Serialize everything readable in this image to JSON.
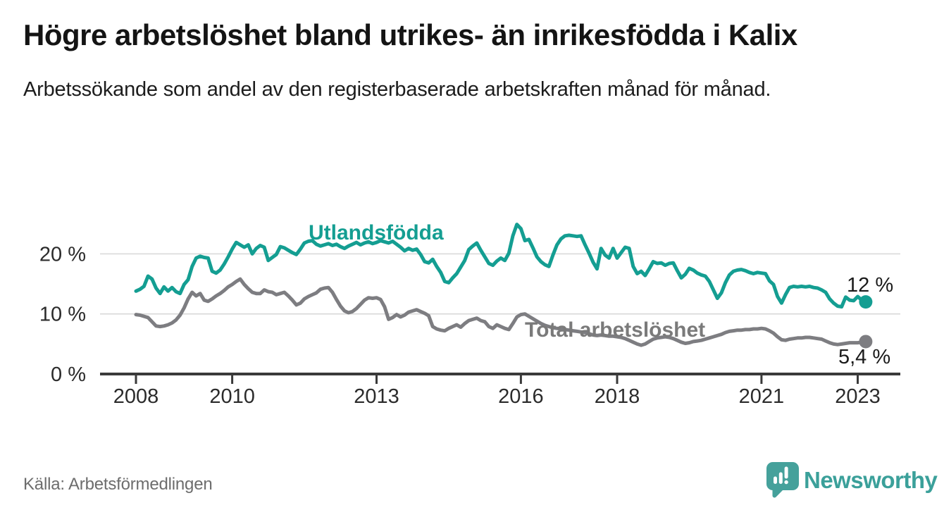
{
  "header": {
    "title": "Högre arbetslöshet bland utrikes- än inrikesfödda i Kalix",
    "subtitle": "Arbetssökande som andel av den registerbaserade arbetskraften månad för månad."
  },
  "footer": {
    "source": "Källa: Arbetsförmedlingen",
    "brand_name": "Newsworthy",
    "brand_icon": "bar-chart-speech-bubble-icon"
  },
  "colors": {
    "foreign_born_line": "#149e92",
    "total_line": "#7d7d81",
    "axis": "#3a3a3a",
    "grid": "#d9d9d9",
    "tick_text": "#2b2b2b",
    "end_label_text": "#1a1a1a",
    "total_label_text": "#7a7a7a",
    "brand_teal": "#45a19b"
  },
  "chart_data": {
    "type": "line",
    "title": "Högre arbetslöshet bland utrikes- än inrikesfödda i Kalix",
    "subtitle": "Arbetssökande som andel av den registerbaserade arbetskraften månad för månad.",
    "x_unit": "monthly, decimal years",
    "x_start": 2008.0,
    "x_step": 0.0833333,
    "xlim": [
      2007.25,
      2023.9
    ],
    "ylim": [
      0,
      27
    ],
    "grid": "horizontal",
    "legend_position": "inline-labels-on-lines",
    "x_ticks": [
      {
        "value": 2008,
        "label": "2008"
      },
      {
        "value": 2010,
        "label": "2010"
      },
      {
        "value": 2013,
        "label": "2013"
      },
      {
        "value": 2016,
        "label": "2016"
      },
      {
        "value": 2018,
        "label": "2018"
      },
      {
        "value": 2021,
        "label": "2021"
      },
      {
        "value": 2023,
        "label": "2023"
      }
    ],
    "y_ticks": [
      {
        "value": 0,
        "label": "0 %"
      },
      {
        "value": 10,
        "label": "10 %"
      },
      {
        "value": 20,
        "label": "20 %"
      }
    ],
    "series": [
      {
        "name": "Utlandsfödda",
        "color": "#149e92",
        "end_label": "12 %",
        "end_value": 12.0,
        "values": [
          13.8,
          14.1,
          14.6,
          16.3,
          15.8,
          14.3,
          13.4,
          14.5,
          13.8,
          14.4,
          13.7,
          13.4,
          14.9,
          15.7,
          17.9,
          19.3,
          19.6,
          19.4,
          19.3,
          17.1,
          16.8,
          17.3,
          18.3,
          19.5,
          20.8,
          21.9,
          21.5,
          21.1,
          21.5,
          20.0,
          20.9,
          21.4,
          21.1,
          18.9,
          19.4,
          19.9,
          21.2,
          21.0,
          20.6,
          20.2,
          19.9,
          20.8,
          21.8,
          22.1,
          22.2,
          21.6,
          21.3,
          21.5,
          21.7,
          21.4,
          21.6,
          21.2,
          20.9,
          21.3,
          21.6,
          21.9,
          21.5,
          21.8,
          22.0,
          21.7,
          21.9,
          22.2,
          22.0,
          21.8,
          22.1,
          21.6,
          21.1,
          20.5,
          20.9,
          20.6,
          20.8,
          19.9,
          18.7,
          18.5,
          19.1,
          17.9,
          16.9,
          15.4,
          15.2,
          16.0,
          16.7,
          17.8,
          18.9,
          20.7,
          21.3,
          21.8,
          20.6,
          19.5,
          18.4,
          18.1,
          18.8,
          19.3,
          18.9,
          20.1,
          23.0,
          24.9,
          24.2,
          22.2,
          22.4,
          21.0,
          19.5,
          18.7,
          18.2,
          17.9,
          19.8,
          21.5,
          22.5,
          23.0,
          23.1,
          23.0,
          22.9,
          23.0,
          21.5,
          20.1,
          18.6,
          17.5,
          20.9,
          19.8,
          19.3,
          20.9,
          19.3,
          20.2,
          21.1,
          20.9,
          17.9,
          16.7,
          17.1,
          16.4,
          17.5,
          18.7,
          18.4,
          18.5,
          18.1,
          18.4,
          18.5,
          17.2,
          16.0,
          16.6,
          17.6,
          17.3,
          16.8,
          16.5,
          16.3,
          15.4,
          14.0,
          12.6,
          13.5,
          15.2,
          16.5,
          17.1,
          17.3,
          17.4,
          17.2,
          16.9,
          16.7,
          16.9,
          16.8,
          16.7,
          15.5,
          14.9,
          12.9,
          11.8,
          13.2,
          14.4,
          14.6,
          14.5,
          14.6,
          14.5,
          14.6,
          14.4,
          14.3,
          14.0,
          13.6,
          12.5,
          11.8,
          11.3,
          11.2,
          12.8,
          12.3,
          12.2,
          12.9,
          12.3,
          12.0
        ]
      },
      {
        "name": "Total arbetslöshet",
        "color": "#7d7d81",
        "end_label": "5,4 %",
        "end_value": 5.4,
        "values": [
          9.9,
          9.8,
          9.6,
          9.4,
          8.7,
          8.0,
          7.9,
          8.0,
          8.2,
          8.5,
          9.0,
          9.8,
          11.0,
          12.5,
          13.6,
          13.0,
          13.4,
          12.3,
          12.1,
          12.5,
          13.0,
          13.4,
          13.9,
          14.5,
          14.9,
          15.4,
          15.8,
          14.9,
          14.2,
          13.6,
          13.4,
          13.4,
          14.0,
          13.7,
          13.6,
          13.2,
          13.4,
          13.6,
          13.0,
          12.3,
          11.5,
          11.8,
          12.5,
          12.9,
          13.2,
          13.5,
          14.1,
          14.3,
          14.4,
          13.6,
          12.4,
          11.3,
          10.5,
          10.2,
          10.4,
          10.9,
          11.6,
          12.3,
          12.7,
          12.6,
          12.7,
          12.4,
          11.2,
          9.1,
          9.4,
          9.9,
          9.5,
          9.8,
          10.3,
          10.5,
          10.7,
          10.4,
          10.1,
          9.7,
          7.9,
          7.5,
          7.3,
          7.2,
          7.6,
          7.9,
          8.2,
          7.8,
          8.4,
          8.9,
          9.1,
          9.3,
          8.9,
          8.7,
          7.9,
          7.6,
          8.2,
          7.9,
          7.6,
          7.4,
          8.4,
          9.5,
          9.9,
          10.0,
          9.6,
          9.2,
          8.8,
          8.4,
          8.1,
          7.9,
          7.7,
          7.6,
          7.5,
          7.4,
          7.3,
          7.2,
          7.1,
          7.0,
          6.9,
          6.7,
          6.5,
          6.4,
          6.5,
          6.4,
          6.3,
          6.3,
          6.2,
          6.1,
          5.9,
          5.6,
          5.3,
          5.0,
          4.8,
          5.0,
          5.4,
          5.8,
          6.0,
          6.1,
          6.2,
          6.1,
          5.9,
          5.6,
          5.3,
          5.1,
          5.2,
          5.4,
          5.5,
          5.6,
          5.8,
          6.0,
          6.2,
          6.4,
          6.6,
          6.9,
          7.1,
          7.2,
          7.3,
          7.3,
          7.4,
          7.4,
          7.5,
          7.5,
          7.6,
          7.5,
          7.2,
          6.8,
          6.2,
          5.7,
          5.6,
          5.8,
          5.9,
          6.0,
          6.0,
          6.1,
          6.1,
          6.0,
          5.9,
          5.8,
          5.5,
          5.2,
          5.0,
          4.9,
          5.0,
          5.1,
          5.2,
          5.2,
          5.2,
          5.3,
          5.4
        ]
      }
    ]
  }
}
